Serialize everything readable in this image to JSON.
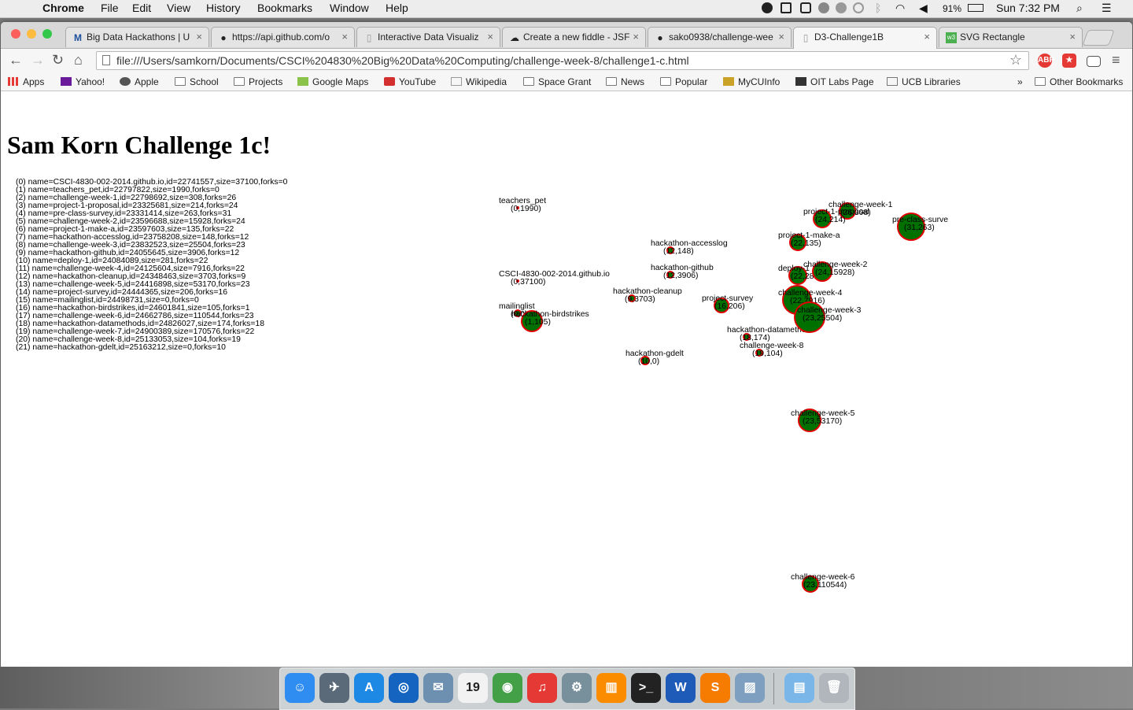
{
  "menubar": {
    "app": "Chrome",
    "items": [
      "File",
      "Edit",
      "View",
      "History",
      "Bookmarks",
      "Window",
      "Help"
    ],
    "battery": "91%",
    "clock": "Sun 7:32 PM"
  },
  "tabs": [
    {
      "title": "Big Data Hackathons | U",
      "icon": "M"
    },
    {
      "title": "https://api.github.com/o",
      "icon": "github-icon"
    },
    {
      "title": "Interactive Data Visualiz",
      "icon": "page-icon"
    },
    {
      "title": "Create a new fiddle - JSF",
      "icon": "cloud-icon"
    },
    {
      "title": "sako0938/challenge-wee",
      "icon": "github-icon"
    },
    {
      "title": "D3-Challenge1B",
      "icon": "page-icon"
    },
    {
      "title": "SVG Rectangle",
      "icon": "w3-icon"
    }
  ],
  "url": "file:///Users/samkorn/Documents/CSCI%204830%20Big%20Data%20Computing/challenge-week-8/challenge1-c.html",
  "bookmarks": [
    {
      "label": "Apps",
      "icon": "apps-icon"
    },
    {
      "label": "Yahoo!",
      "icon": "yahoo-icon"
    },
    {
      "label": "Apple",
      "icon": "apple-icon"
    },
    {
      "label": "School",
      "icon": "folder-icon"
    },
    {
      "label": "Projects",
      "icon": "folder-icon"
    },
    {
      "label": "Google Maps",
      "icon": "maps-icon"
    },
    {
      "label": "YouTube",
      "icon": "youtube-icon"
    },
    {
      "label": "Wikipedia",
      "icon": "wikipedia-icon"
    },
    {
      "label": "Space Grant",
      "icon": "folder-icon"
    },
    {
      "label": "News",
      "icon": "folder-icon"
    },
    {
      "label": "Popular",
      "icon": "folder-icon"
    },
    {
      "label": "MyCUInfo",
      "icon": "cu-icon"
    },
    {
      "label": "OIT Labs Page",
      "icon": "oit-icon"
    },
    {
      "label": "UCB Libraries",
      "icon": "library-icon"
    }
  ],
  "overflow_chevron": "»",
  "other_bookmarks": "Other Bookmarks",
  "page": {
    "title": "Sam Korn Challenge 1c!",
    "repos": [
      "(0) name=CSCI-4830-002-2014.github.io,id=22741557,size=37100,forks=0",
      "(1) name=teachers_pet,id=22797822,size=1990,forks=0",
      "(2) name=challenge-week-1,id=22798692,size=308,forks=26",
      "(3) name=project-1-proposal,id=23325681,size=214,forks=24",
      "(4) name=pre-class-survey,id=23331414,size=263,forks=31",
      "(5) name=challenge-week-2,id=23596688,size=15928,forks=24",
      "(6) name=project-1-make-a,id=23597603,size=135,forks=22",
      "(7) name=hackathon-accesslog,id=23758208,size=148,forks=12",
      "(8) name=challenge-week-3,id=23832523,size=25504,forks=23",
      "(9) name=hackathon-github,id=24055645,size=3906,forks=12",
      "(10) name=deploy-1,id=24084089,size=281,forks=22",
      "(11) name=challenge-week-4,id=24125604,size=7916,forks=22",
      "(12) name=hackathon-cleanup,id=24348463,size=3703,forks=9",
      "(13) name=challenge-week-5,id=24416898,size=53170,forks=23",
      "(14) name=project-survey,id=24444365,size=206,forks=16",
      "(15) name=mailinglist,id=24498731,size=0,forks=0",
      "(16) name=hackathon-birdstrikes,id=24601841,size=105,forks=1",
      "(17) name=challenge-week-6,id=24662786,size=110544,forks=23",
      "(18) name=hackathon-datamethods,id=24826027,size=174,forks=18",
      "(19) name=challenge-week-7,id=24900389,size=170576,forks=22",
      "(20) name=challenge-week-8,id=25133053,size=104,forks=19",
      "(21) name=hackathon-gdelt,id=25163212,size=0,forks=10"
    ]
  },
  "chart_data": {
    "type": "scatter",
    "title": "",
    "xlabel": "",
    "ylabel": "",
    "grid": false,
    "fill_color": "#007000",
    "stroke_color": "#e00000",
    "points": [
      {
        "name": "teachers_pet",
        "label": "(0,1990)",
        "forks": 0,
        "size": 1990,
        "r": 1
      },
      {
        "name": "CSCI-4830-002-2014.github.io",
        "label": "(0,37100)",
        "forks": 0,
        "size": 37100,
        "r": 1
      },
      {
        "name": "mailinglist",
        "label": "(0,0)",
        "forks": 0,
        "size": 0,
        "r": 4
      },
      {
        "name": "hackathon-birdstrikes",
        "label": "(1,105)",
        "forks": 1,
        "size": 105,
        "r": 13
      },
      {
        "name": "hackathon-accesslog",
        "label": "(12,148)",
        "forks": 12,
        "size": 148,
        "r": 4
      },
      {
        "name": "hackathon-github",
        "label": "(12,3906)",
        "forks": 12,
        "size": 3906,
        "r": 4
      },
      {
        "name": "hackathon-cleanup",
        "label": "(9,3703)",
        "forks": 9,
        "size": 3703,
        "r": 4
      },
      {
        "name": "hackathon-gdelt",
        "label": "(10,0)",
        "forks": 10,
        "size": 0,
        "r": 5
      },
      {
        "name": "project-survey",
        "label": "(16,206)",
        "forks": 16,
        "size": 206,
        "r": 9
      },
      {
        "name": "hackathon-datamethods",
        "label": "(18,174)",
        "forks": 18,
        "size": 174,
        "r": 4
      },
      {
        "name": "challenge-week-8",
        "label": "(19,104)",
        "forks": 19,
        "size": 104,
        "r": 4
      },
      {
        "name": "challenge-week-1",
        "label": "(26,308)",
        "forks": 26,
        "size": 308,
        "r": 10
      },
      {
        "name": "project-1-proposal",
        "label": "(24,214)",
        "forks": 24,
        "size": 214,
        "r": 11
      },
      {
        "name": "pre-class-surve",
        "label": "(31,263)",
        "forks": 31,
        "size": 263,
        "r": 17
      },
      {
        "name": "project-1-make-a",
        "label": "(22,135)",
        "forks": 22,
        "size": 135,
        "r": 10
      },
      {
        "name": "deploy-1",
        "label": "(22,281)",
        "forks": 22,
        "size": 281,
        "r": 11
      },
      {
        "name": "challenge-week-2",
        "label": "(24,15928)",
        "forks": 24,
        "size": 15928,
        "r": 12
      },
      {
        "name": "challenge-week-4",
        "label": "(22,7916)",
        "forks": 22,
        "size": 7916,
        "r": 18
      },
      {
        "name": "challenge-week-3",
        "label": "(23,25504)",
        "forks": 23,
        "size": 25504,
        "r": 19
      },
      {
        "name": "challenge-week-5",
        "label": "(23,53170)",
        "forks": 23,
        "size": 53170,
        "r": 14
      },
      {
        "name": "challenge-week-6",
        "label": "(23,110544)",
        "forks": 23,
        "size": 110544,
        "r": 10
      }
    ]
  },
  "dock": [
    {
      "name": "finder-icon",
      "glyph": "☺",
      "color": "#2f8cf0"
    },
    {
      "name": "launchpad-icon",
      "glyph": "✈",
      "color": "#5a6a78"
    },
    {
      "name": "app-store-icon",
      "glyph": "A",
      "color": "#1e88e5"
    },
    {
      "name": "safari-icon",
      "glyph": "◎",
      "color": "#1565c0"
    },
    {
      "name": "mail-icon",
      "glyph": "✉",
      "color": "#6d8fb0"
    },
    {
      "name": "calendar-icon",
      "glyph": "19",
      "color": "#f2f2f2"
    },
    {
      "name": "chrome-icon",
      "glyph": "◉",
      "color": "#43a047"
    },
    {
      "name": "itunes-icon",
      "glyph": "♫",
      "color": "#e53935"
    },
    {
      "name": "system-preferences-icon",
      "glyph": "⚙",
      "color": "#78909c"
    },
    {
      "name": "ibooks-icon",
      "glyph": "▥",
      "color": "#fb8c00"
    },
    {
      "name": "terminal-icon",
      "glyph": ">_",
      "color": "#222222"
    },
    {
      "name": "word-icon",
      "glyph": "W",
      "color": "#1e5bb8"
    },
    {
      "name": "sublime-text-icon",
      "glyph": "S",
      "color": "#f57c00"
    },
    {
      "name": "preview-icon",
      "glyph": "▨",
      "color": "#7e9fbf"
    },
    {
      "name": "downloads-stack-icon",
      "glyph": "▤",
      "color": "#7ab6e8"
    },
    {
      "name": "trash-icon",
      "glyph": "🗑",
      "color": "#b0b6bb"
    }
  ]
}
